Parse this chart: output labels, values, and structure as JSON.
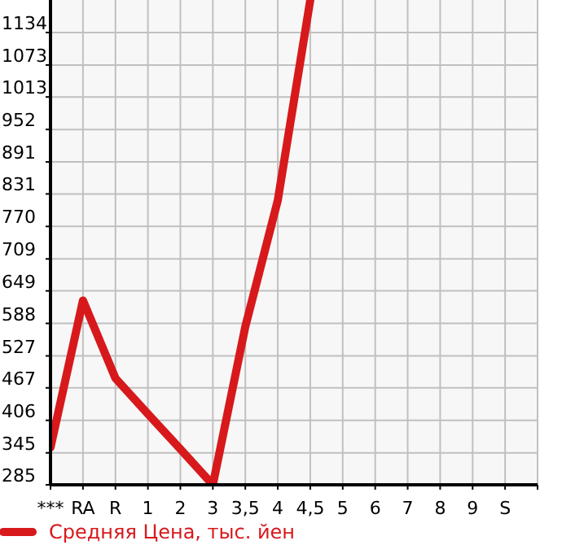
{
  "chart_data": {
    "type": "line",
    "categories": [
      "***",
      "RA",
      "R",
      "1",
      "2",
      "3",
      "3,5",
      "4",
      "4,5",
      "5",
      "6",
      "7",
      "8",
      "9",
      "S",
      null
    ],
    "series": [
      {
        "name": "Средняя Цена, тыс. йен",
        "color": "#d7191c",
        "values": [
          355,
          631,
          485,
          418,
          352,
          285,
          582,
          819,
          1195,
          null,
          null,
          null,
          null,
          null,
          null,
          null
        ]
      }
    ],
    "ylim": [
      285,
      1195
    ],
    "yticks": [
      285,
      345,
      406,
      467,
      527,
      588,
      649,
      709,
      770,
      831,
      891,
      952,
      1013,
      1073,
      1134
    ],
    "grid": true,
    "legend": "bottom left",
    "marker": "none",
    "line_style": "solid"
  }
}
